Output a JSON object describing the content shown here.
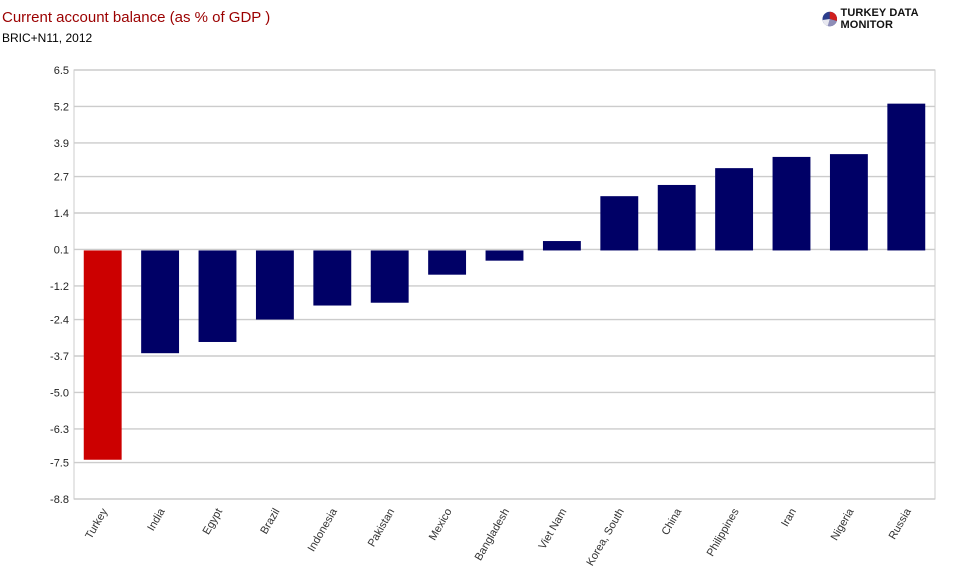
{
  "header": {
    "title": "Current account balance (as % of GDP )",
    "subtitle": "BRIC+N11, 2012"
  },
  "brand": {
    "name": "TURKEY DATA MONITOR",
    "icon": "pie-globe-icon"
  },
  "colors": {
    "highlight": "#cc0000",
    "bar": "#000066",
    "grid": "#cccccc",
    "title": "#9b0000"
  },
  "chart_data": {
    "type": "bar",
    "categories": [
      "Turkey",
      "India",
      "Egypt",
      "Brazil",
      "Indonesia",
      "Pakistan",
      "Mexico",
      "Bangladesh",
      "Viet Nam",
      "Korea, South",
      "China",
      "Philippines",
      "Iran",
      "Nigeria",
      "Russia"
    ],
    "series": [
      {
        "values": [
          -7.4,
          -3.6,
          -3.2,
          -2.4,
          -1.9,
          -1.8,
          -0.8,
          -0.3,
          0.4,
          2.0,
          2.4,
          3.0,
          3.4,
          3.5,
          5.3
        ]
      }
    ],
    "highlight_category": "Turkey",
    "yticks": [
      "6.5",
      "5.2",
      "3.9",
      "2.7",
      "1.4",
      "0.1",
      "-1.2",
      "-2.4",
      "-3.7",
      "-5.0",
      "-6.3",
      "-7.5",
      "-8.8"
    ],
    "ylim": [
      -8.8,
      6.5
    ],
    "grid": true,
    "legend": "none",
    "xlabel": "",
    "ylabel": ""
  }
}
